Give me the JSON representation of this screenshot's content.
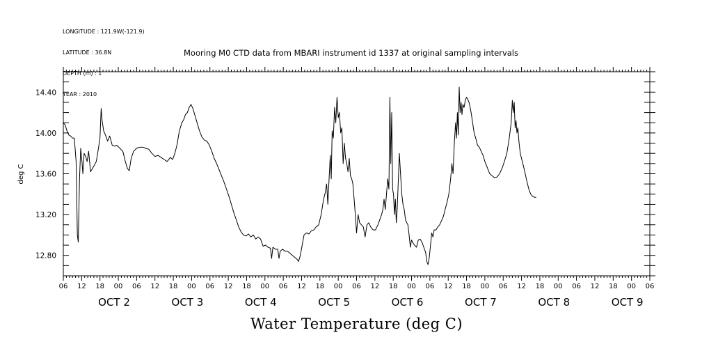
{
  "meta": {
    "longitude": "LONGITUDE : 121.9W(-121.9)",
    "latitude": "LATITUDE : 36.8N",
    "depth": "DEPTH (m) : 1",
    "year": "YEAR : 2010"
  },
  "chart_data": {
    "type": "line",
    "title": "Mooring M0 CTD data from MBARI instrument id 1337 at original sampling intervals",
    "ylabel": "deg C",
    "xlabel": "Water Temperature (deg C)",
    "ylim": [
      12.6,
      14.6
    ],
    "xlim_hours": [
      6,
      198
    ],
    "y_ticks": [
      "12.80",
      "13.20",
      "13.60",
      "14.00",
      "14.40"
    ],
    "y_tick_values": [
      12.8,
      13.2,
      13.6,
      14.0,
      14.4
    ],
    "x_hour_labels": [
      "06",
      "12",
      "18",
      "00",
      "06",
      "12",
      "18",
      "00",
      "06",
      "12",
      "18",
      "00",
      "06",
      "12",
      "18",
      "00",
      "06",
      "12",
      "18",
      "00",
      "06",
      "12",
      "18",
      "00",
      "06",
      "12",
      "18",
      "00",
      "06",
      "12",
      "18",
      "00",
      "06"
    ],
    "x_day_labels": [
      {
        "label": "OCT  2",
        "hour": 24
      },
      {
        "label": "OCT  3",
        "hour": 48
      },
      {
        "label": "OCT  4",
        "hour": 72
      },
      {
        "label": "OCT  5",
        "hour": 96
      },
      {
        "label": "OCT  6",
        "hour": 120
      },
      {
        "label": "OCT  7",
        "hour": 144
      },
      {
        "label": "OCT  8",
        "hour": 168
      },
      {
        "label": "OCT  9",
        "hour": 192
      }
    ],
    "series": [
      {
        "values_hour_temp": [
          [
            6.0,
            14.1
          ],
          [
            6.6,
            14.08
          ],
          [
            7.2,
            14.02
          ],
          [
            7.8,
            13.98
          ],
          [
            8.4,
            13.97
          ],
          [
            9.0,
            13.95
          ],
          [
            9.6,
            13.95
          ],
          [
            10.2,
            13.72
          ],
          [
            10.6,
            13.0
          ],
          [
            10.9,
            12.93
          ],
          [
            11.3,
            13.55
          ],
          [
            11.7,
            13.85
          ],
          [
            12.1,
            13.72
          ],
          [
            12.4,
            13.6
          ],
          [
            12.8,
            13.8
          ],
          [
            13.3,
            13.77
          ],
          [
            13.8,
            13.72
          ],
          [
            14.3,
            13.82
          ],
          [
            14.9,
            13.62
          ],
          [
            15.5,
            13.65
          ],
          [
            16.1,
            13.68
          ],
          [
            16.8,
            13.72
          ],
          [
            17.5,
            13.85
          ],
          [
            18.0,
            13.95
          ],
          [
            18.4,
            14.24
          ],
          [
            18.7,
            14.12
          ],
          [
            19.2,
            14.02
          ],
          [
            19.8,
            13.98
          ],
          [
            20.5,
            13.92
          ],
          [
            21.2,
            13.97
          ],
          [
            22.0,
            13.88
          ],
          [
            22.8,
            13.87
          ],
          [
            23.5,
            13.88
          ],
          [
            24.5,
            13.85
          ],
          [
            25.5,
            13.82
          ],
          [
            26.3,
            13.72
          ],
          [
            27.0,
            13.65
          ],
          [
            27.6,
            13.63
          ],
          [
            28.2,
            13.75
          ],
          [
            29.0,
            13.82
          ],
          [
            30.0,
            13.85
          ],
          [
            31.0,
            13.86
          ],
          [
            32.0,
            13.86
          ],
          [
            33.0,
            13.85
          ],
          [
            34.0,
            13.84
          ],
          [
            35.0,
            13.8
          ],
          [
            36.0,
            13.77
          ],
          [
            37.0,
            13.78
          ],
          [
            38.0,
            13.76
          ],
          [
            39.0,
            13.74
          ],
          [
            40.0,
            13.72
          ],
          [
            41.0,
            13.76
          ],
          [
            41.8,
            13.74
          ],
          [
            42.5,
            13.8
          ],
          [
            43.2,
            13.88
          ],
          [
            44.0,
            14.02
          ],
          [
            44.8,
            14.1
          ],
          [
            45.4,
            14.13
          ],
          [
            46.0,
            14.18
          ],
          [
            46.6,
            14.2
          ],
          [
            47.2,
            14.25
          ],
          [
            47.8,
            14.28
          ],
          [
            48.4,
            14.24
          ],
          [
            49.0,
            14.18
          ],
          [
            49.8,
            14.1
          ],
          [
            50.6,
            14.02
          ],
          [
            51.4,
            13.96
          ],
          [
            52.2,
            13.93
          ],
          [
            53.0,
            13.92
          ],
          [
            53.8,
            13.88
          ],
          [
            54.6,
            13.82
          ],
          [
            55.4,
            13.75
          ],
          [
            56.2,
            13.7
          ],
          [
            57.0,
            13.64
          ],
          [
            57.8,
            13.58
          ],
          [
            58.6,
            13.52
          ],
          [
            59.4,
            13.45
          ],
          [
            60.2,
            13.38
          ],
          [
            61.0,
            13.3
          ],
          [
            61.8,
            13.22
          ],
          [
            62.6,
            13.15
          ],
          [
            63.4,
            13.08
          ],
          [
            64.2,
            13.03
          ],
          [
            65.0,
            13.0
          ],
          [
            65.8,
            12.99
          ],
          [
            66.6,
            13.01
          ],
          [
            67.4,
            12.98
          ],
          [
            68.2,
            13.0
          ],
          [
            69.0,
            12.96
          ],
          [
            69.8,
            12.98
          ],
          [
            70.6,
            12.96
          ],
          [
            71.4,
            12.89
          ],
          [
            72.2,
            12.9
          ],
          [
            73.0,
            12.88
          ],
          [
            73.8,
            12.87
          ],
          [
            74.2,
            12.77
          ],
          [
            74.6,
            12.88
          ],
          [
            75.4,
            12.86
          ],
          [
            76.2,
            12.86
          ],
          [
            76.6,
            12.77
          ],
          [
            77.0,
            12.84
          ],
          [
            77.8,
            12.86
          ],
          [
            78.6,
            12.84
          ],
          [
            79.4,
            12.84
          ],
          [
            80.2,
            12.82
          ],
          [
            81.0,
            12.8
          ],
          [
            81.8,
            12.78
          ],
          [
            82.6,
            12.76
          ],
          [
            83.0,
            12.74
          ],
          [
            83.6,
            12.8
          ],
          [
            84.2,
            12.9
          ],
          [
            84.8,
            13.0
          ],
          [
            85.6,
            13.02
          ],
          [
            86.4,
            13.01
          ],
          [
            87.2,
            13.04
          ],
          [
            88.0,
            13.05
          ],
          [
            88.8,
            13.08
          ],
          [
            89.6,
            13.1
          ],
          [
            90.4,
            13.2
          ],
          [
            91.2,
            13.35
          ],
          [
            91.8,
            13.42
          ],
          [
            92.2,
            13.5
          ],
          [
            92.6,
            13.3
          ],
          [
            93.0,
            13.55
          ],
          [
            93.4,
            13.78
          ],
          [
            93.7,
            13.55
          ],
          [
            94.0,
            14.02
          ],
          [
            94.4,
            13.95
          ],
          [
            94.8,
            14.25
          ],
          [
            95.2,
            14.1
          ],
          [
            95.6,
            14.35
          ],
          [
            96.0,
            14.15
          ],
          [
            96.4,
            14.2
          ],
          [
            96.8,
            14.0
          ],
          [
            97.2,
            14.05
          ],
          [
            97.6,
            13.7
          ],
          [
            98.0,
            13.9
          ],
          [
            98.4,
            13.75
          ],
          [
            98.8,
            13.7
          ],
          [
            99.2,
            13.62
          ],
          [
            99.6,
            13.75
          ],
          [
            100.0,
            13.58
          ],
          [
            100.4,
            13.55
          ],
          [
            100.8,
            13.5
          ],
          [
            101.2,
            13.35
          ],
          [
            101.6,
            13.2
          ],
          [
            102.0,
            13.02
          ],
          [
            102.5,
            13.2
          ],
          [
            103.0,
            13.12
          ],
          [
            103.6,
            13.1
          ],
          [
            104.2,
            13.08
          ],
          [
            104.8,
            12.98
          ],
          [
            105.4,
            13.1
          ],
          [
            106.0,
            13.12
          ],
          [
            106.6,
            13.08
          ],
          [
            107.4,
            13.05
          ],
          [
            108.2,
            13.05
          ],
          [
            109.0,
            13.1
          ],
          [
            109.6,
            13.15
          ],
          [
            110.2,
            13.2
          ],
          [
            110.6,
            13.25
          ],
          [
            111.0,
            13.35
          ],
          [
            111.4,
            13.25
          ],
          [
            111.8,
            13.4
          ],
          [
            112.2,
            13.55
          ],
          [
            112.6,
            13.45
          ],
          [
            112.9,
            14.35
          ],
          [
            113.2,
            13.7
          ],
          [
            113.5,
            14.2
          ],
          [
            113.8,
            13.45
          ],
          [
            114.1,
            13.4
          ],
          [
            114.4,
            13.2
          ],
          [
            114.7,
            13.35
          ],
          [
            115.0,
            13.12
          ],
          [
            115.3,
            13.25
          ],
          [
            115.6,
            13.48
          ],
          [
            116.0,
            13.8
          ],
          [
            116.4,
            13.6
          ],
          [
            116.8,
            13.4
          ],
          [
            117.2,
            13.3
          ],
          [
            117.6,
            13.25
          ],
          [
            118.0,
            13.15
          ],
          [
            118.4,
            13.12
          ],
          [
            118.8,
            13.1
          ],
          [
            119.2,
            13.0
          ],
          [
            119.6,
            12.88
          ],
          [
            120.0,
            12.95
          ],
          [
            120.5,
            12.92
          ],
          [
            121.0,
            12.9
          ],
          [
            121.6,
            12.88
          ],
          [
            122.2,
            12.95
          ],
          [
            122.8,
            12.96
          ],
          [
            123.4,
            12.93
          ],
          [
            124.0,
            12.88
          ],
          [
            124.6,
            12.83
          ],
          [
            125.0,
            12.74
          ],
          [
            125.4,
            12.71
          ],
          [
            125.8,
            12.78
          ],
          [
            126.2,
            12.9
          ],
          [
            126.6,
            13.02
          ],
          [
            127.0,
            12.98
          ],
          [
            127.4,
            13.05
          ],
          [
            128.0,
            13.05
          ],
          [
            128.6,
            13.08
          ],
          [
            129.2,
            13.1
          ],
          [
            129.8,
            13.14
          ],
          [
            130.4,
            13.18
          ],
          [
            131.0,
            13.25
          ],
          [
            131.6,
            13.32
          ],
          [
            132.2,
            13.4
          ],
          [
            132.8,
            13.55
          ],
          [
            133.2,
            13.7
          ],
          [
            133.6,
            13.6
          ],
          [
            134.0,
            13.9
          ],
          [
            134.4,
            14.1
          ],
          [
            134.7,
            13.95
          ],
          [
            135.0,
            14.2
          ],
          [
            135.3,
            13.98
          ],
          [
            135.6,
            14.45
          ],
          [
            135.9,
            14.2
          ],
          [
            136.2,
            14.3
          ],
          [
            136.5,
            14.18
          ],
          [
            136.8,
            14.28
          ],
          [
            137.2,
            14.25
          ],
          [
            137.6,
            14.32
          ],
          [
            138.0,
            14.35
          ],
          [
            138.4,
            14.33
          ],
          [
            138.8,
            14.3
          ],
          [
            139.2,
            14.25
          ],
          [
            139.6,
            14.18
          ],
          [
            140.0,
            14.1
          ],
          [
            140.5,
            14.0
          ],
          [
            141.0,
            13.95
          ],
          [
            141.6,
            13.88
          ],
          [
            142.2,
            13.86
          ],
          [
            142.8,
            13.82
          ],
          [
            143.4,
            13.78
          ],
          [
            144.0,
            13.72
          ],
          [
            144.8,
            13.66
          ],
          [
            145.6,
            13.6
          ],
          [
            146.4,
            13.58
          ],
          [
            147.2,
            13.56
          ],
          [
            148.0,
            13.57
          ],
          [
            148.8,
            13.6
          ],
          [
            149.6,
            13.65
          ],
          [
            150.4,
            13.72
          ],
          [
            151.2,
            13.8
          ],
          [
            152.0,
            13.95
          ],
          [
            152.6,
            14.1
          ],
          [
            153.0,
            14.32
          ],
          [
            153.3,
            14.2
          ],
          [
            153.6,
            14.3
          ],
          [
            153.9,
            14.05
          ],
          [
            154.2,
            14.12
          ],
          [
            154.5,
            14.0
          ],
          [
            154.8,
            14.05
          ],
          [
            155.2,
            13.9
          ],
          [
            155.6,
            13.8
          ],
          [
            156.0,
            13.75
          ],
          [
            156.6,
            13.68
          ],
          [
            157.2,
            13.6
          ],
          [
            157.8,
            13.52
          ],
          [
            158.4,
            13.45
          ],
          [
            159.0,
            13.4
          ],
          [
            159.6,
            13.38
          ],
          [
            160.2,
            13.37
          ],
          [
            160.8,
            13.37
          ]
        ]
      }
    ]
  }
}
